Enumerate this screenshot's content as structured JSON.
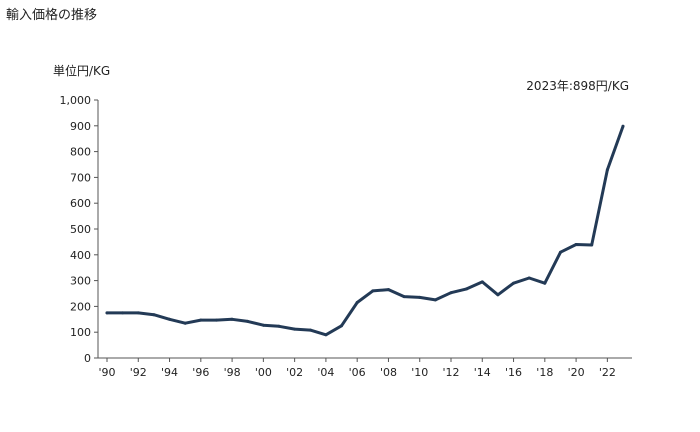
{
  "title": "輸入価格の推移",
  "unit_label": "単位円/KG",
  "annotation": "2023年:898円/KG",
  "colors": {
    "line": "#233a56",
    "axis": "#555555"
  },
  "chart_data": {
    "type": "line",
    "title": "輸入価格の推移",
    "ylabel": "単位円/KG",
    "xlabel": "",
    "ylim": [
      0,
      1000
    ],
    "yticks": [
      0,
      100,
      200,
      300,
      400,
      500,
      600,
      700,
      800,
      900,
      1000
    ],
    "ytick_labels": [
      "0",
      "100",
      "200",
      "300",
      "400",
      "500",
      "600",
      "700",
      "800",
      "900",
      "1,000"
    ],
    "xticks": [
      1990,
      1992,
      1994,
      1996,
      1998,
      2000,
      2002,
      2004,
      2006,
      2008,
      2010,
      2012,
      2014,
      2016,
      2018,
      2020,
      2022
    ],
    "xtick_labels": [
      "'90",
      "'92",
      "'94",
      "'96",
      "'98",
      "'00",
      "'02",
      "'04",
      "'06",
      "'08",
      "'10",
      "'12",
      "'14",
      "'16",
      "'18",
      "'20",
      "'22"
    ],
    "xlim": [
      1990,
      2023
    ],
    "grid": false,
    "series": [
      {
        "x": [
          1990,
          1991,
          1992,
          1993,
          1994,
          1995,
          1996,
          1997,
          1998,
          1999,
          2000,
          2001,
          2002,
          2003,
          2004,
          2005,
          2006,
          2007,
          2008,
          2009,
          2010,
          2011,
          2012,
          2013,
          2014,
          2015,
          2016,
          2017,
          2018,
          2019,
          2020,
          2021,
          2022,
          2023
        ],
        "values": [
          175,
          175,
          175,
          168,
          150,
          135,
          147,
          147,
          150,
          142,
          127,
          123,
          112,
          108,
          90,
          125,
          215,
          260,
          265,
          238,
          235,
          225,
          253,
          268,
          295,
          245,
          290,
          310,
          290,
          410,
          440,
          438,
          730,
          898
        ]
      }
    ]
  }
}
